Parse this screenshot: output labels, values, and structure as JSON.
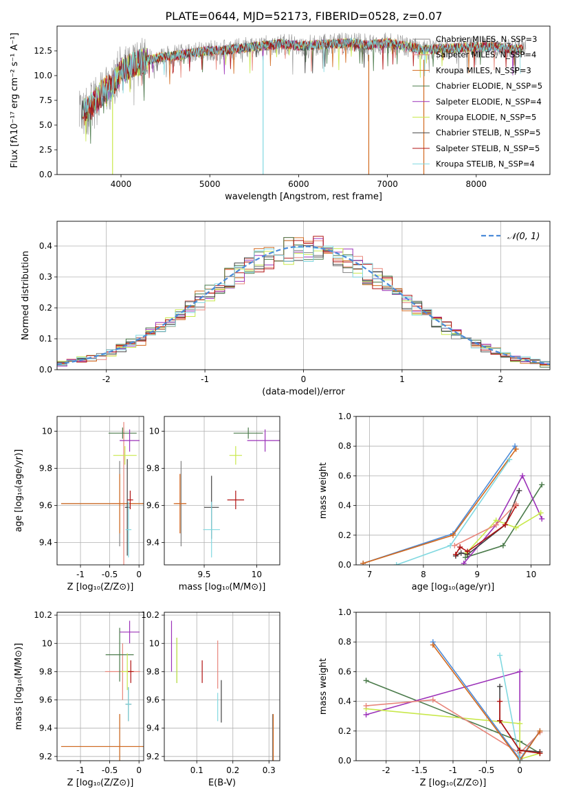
{
  "figure_title": "PLATE=0644, MJD=52173, FIBERID=0528, z=0.07",
  "colors": {
    "chabrier_miles": "#808080",
    "salpeter_miles": "#e8857a",
    "kroupa_miles": "#d2691e",
    "chabrier_elodie": "#4a7a4a",
    "salpeter_elodie": "#9b30b8",
    "kroupa_elodie": "#c8e84a",
    "chabrier_stelib": "#404040",
    "salpeter_stelib": "#b01010",
    "kroupa_stelib": "#80d8e0",
    "gauss": "#4a8ad8"
  },
  "chart_data": [
    {
      "id": "spectrum",
      "type": "line",
      "xlabel": "wavelength [Angstrom, rest frame]",
      "ylabel": "Flux [fλ10⁻¹⁷ erg cm⁻² s⁻¹ A⁻¹]",
      "xlim": [
        3280,
        8830
      ],
      "ylim": [
        0,
        15.0
      ],
      "xticks": [
        4000,
        5000,
        6000,
        7000,
        8000
      ],
      "yticks": [
        0.0,
        2.5,
        5.0,
        7.5,
        10.0,
        12.5
      ],
      "ytick_labels": [
        "0.0",
        "2.5",
        "5.0",
        "7.5",
        "10.0",
        "12.5"
      ],
      "legend_position": "right",
      "continuum": {
        "x": [
          3550,
          3700,
          3800,
          3900,
          4000,
          4100,
          4200,
          4400,
          4600,
          4800,
          5000,
          5200,
          5400,
          5600,
          5800,
          6000,
          6200,
          6400,
          6600,
          6800,
          7000,
          7200,
          7400,
          7600,
          7800,
          8000,
          8200,
          8400,
          8550
        ],
        "y": [
          6.0,
          7.2,
          8.4,
          9.0,
          10.5,
          11.0,
          11.3,
          11.8,
          12.0,
          12.3,
          12.5,
          12.6,
          12.8,
          13.0,
          13.2,
          13.0,
          13.1,
          13.2,
          13.3,
          13.1,
          13.3,
          13.0,
          12.6,
          12.7,
          12.8,
          12.9,
          12.9,
          12.7,
          12.6
        ]
      },
      "series": [
        {
          "name": "Chabrier MILES, N_SSP=3",
          "color_key": "chabrier_miles"
        },
        {
          "name": "Salpeter MILES, N_SSP=4",
          "color_key": "salpeter_miles"
        },
        {
          "name": "Kroupa MILES, N_SSP=3",
          "color_key": "kroupa_miles"
        },
        {
          "name": "Chabrier ELODIE, N_SSP=5",
          "color_key": "chabrier_elodie"
        },
        {
          "name": "Salpeter ELODIE, N_SSP=4",
          "color_key": "salpeter_elodie"
        },
        {
          "name": "Kroupa ELODIE, N_SSP=5",
          "color_key": "kroupa_elodie"
        },
        {
          "name": "Chabrier STELIB, N_SSP=5",
          "color_key": "chabrier_stelib"
        },
        {
          "name": "Salpeter STELIB, N_SSP=5",
          "color_key": "salpeter_stelib"
        },
        {
          "name": "Kroupa STELIB, N_SSP=4",
          "color_key": "kroupa_stelib"
        }
      ]
    },
    {
      "id": "residuals",
      "type": "line",
      "xlabel": "(data-model)/error",
      "ylabel": "Normed distribution",
      "xlim": [
        -2.5,
        2.5
      ],
      "ylim": [
        0,
        0.48
      ],
      "xticks": [
        -2,
        -1,
        0,
        1,
        2
      ],
      "yticks": [
        0.0,
        0.1,
        0.2,
        0.3,
        0.4
      ],
      "ytick_labels": [
        "0.0",
        "0.1",
        "0.2",
        "0.3",
        "0.4"
      ],
      "grid": true,
      "legend_position": "top-right",
      "legend": "𝒩(0, 1)",
      "bin_width": 0.1,
      "gaussian": {
        "mean": 0,
        "sigma": 1
      }
    },
    {
      "id": "age_vs_Z",
      "type": "scatter",
      "xlabel": "Z [log₁₀(Z/Z⊙)]",
      "ylabel": "age  [log₁₀(age/yr)]",
      "xlim": [
        -1.4,
        0.08
      ],
      "ylim": [
        9.28,
        10.08
      ],
      "xticks": [
        -1.0,
        -0.5,
        0.0
      ],
      "yticks": [
        9.4,
        9.6,
        9.8,
        10.0
      ],
      "grid": true,
      "points": [
        {
          "color_key": "chabrier_miles",
          "x": -0.33,
          "y": 9.61,
          "xerr": 1.0,
          "yerr": 0.23
        },
        {
          "color_key": "salpeter_miles",
          "x": -0.26,
          "y": 9.61,
          "xerr": 0.2,
          "yerr": 0.44
        },
        {
          "color_key": "kroupa_miles",
          "x": -0.33,
          "y": 9.61,
          "xerr": 1.0,
          "yerr": 0.16
        },
        {
          "color_key": "chabrier_elodie",
          "x": -0.28,
          "y": 9.99,
          "xerr": 0.24,
          "yerr": 0.03
        },
        {
          "color_key": "salpeter_elodie",
          "x": -0.16,
          "y": 9.95,
          "xerr": 0.17,
          "yerr": 0.06
        },
        {
          "color_key": "kroupa_elodie",
          "x": -0.24,
          "y": 9.87,
          "xerr": 0.2,
          "yerr": 0.05
        },
        {
          "color_key": "chabrier_stelib",
          "x": -0.2,
          "y": 9.59,
          "xerr": 0.04,
          "yerr": 0.26
        },
        {
          "color_key": "salpeter_stelib",
          "x": -0.15,
          "y": 9.63,
          "xerr": 0.05,
          "yerr": 0.05
        },
        {
          "color_key": "kroupa_stelib",
          "x": -0.18,
          "y": 9.47,
          "xerr": 0.05,
          "yerr": 0.15
        }
      ]
    },
    {
      "id": "age_vs_mass",
      "type": "scatter",
      "xlabel": "mass [log₁₀(M/M⊙)]",
      "ylabel": "",
      "xlim": [
        9.12,
        10.22
      ],
      "ylim": [
        9.28,
        10.08
      ],
      "xticks": [
        9.5,
        10.0
      ],
      "yticks": [
        9.4,
        9.6,
        9.8,
        10.0
      ],
      "grid": true,
      "points": [
        {
          "color_key": "chabrier_miles",
          "x": 9.28,
          "y": 9.61,
          "xerr": 0.05,
          "yerr": 0.23
        },
        {
          "color_key": "salpeter_miles",
          "x": 9.27,
          "y": 9.61,
          "xerr": 0.05,
          "yerr": 0.16
        },
        {
          "color_key": "kroupa_miles",
          "x": 9.27,
          "y": 9.61,
          "xerr": 0.06,
          "yerr": 0.16
        },
        {
          "color_key": "chabrier_elodie",
          "x": 9.92,
          "y": 9.99,
          "xerr": 0.14,
          "yerr": 0.03
        },
        {
          "color_key": "salpeter_elodie",
          "x": 10.08,
          "y": 9.95,
          "xerr": 0.17,
          "yerr": 0.06
        },
        {
          "color_key": "kroupa_elodie",
          "x": 9.8,
          "y": 9.87,
          "xerr": 0.06,
          "yerr": 0.05
        },
        {
          "color_key": "chabrier_stelib",
          "x": 9.57,
          "y": 9.59,
          "xerr": 0.07,
          "yerr": 0.17
        },
        {
          "color_key": "salpeter_stelib",
          "x": 9.8,
          "y": 9.63,
          "xerr": 0.08,
          "yerr": 0.05
        },
        {
          "color_key": "kroupa_stelib",
          "x": 9.57,
          "y": 9.47,
          "xerr": 0.08,
          "yerr": 0.15
        }
      ]
    },
    {
      "id": "weight_vs_age",
      "type": "line",
      "xlabel": "age  [log₁₀(age/yr)]",
      "ylabel": "mass weight",
      "xlim": [
        6.75,
        10.35
      ],
      "ylim": [
        0,
        1.0
      ],
      "xticks": [
        7,
        8,
        9,
        10
      ],
      "yticks": [
        0.0,
        0.2,
        0.4,
        0.6,
        0.8,
        1.0
      ],
      "ytick_labels": [
        "0.0",
        "0.2",
        "0.4",
        "0.6",
        "0.8",
        "1.0"
      ],
      "grid": true,
      "series": [
        {
          "color_key": "gauss",
          "x": [
            6.88,
            8.55,
            9.7
          ],
          "y": [
            0.01,
            0.21,
            0.8
          ]
        },
        {
          "color_key": "kroupa_miles",
          "x": [
            6.88,
            8.55,
            9.72
          ],
          "y": [
            0.01,
            0.2,
            0.78
          ]
        },
        {
          "color_key": "chabrier_elodie",
          "x": [
            8.78,
            9.48,
            10.2
          ],
          "y": [
            0.05,
            0.13,
            0.54
          ]
        },
        {
          "color_key": "salpeter_elodie",
          "x": [
            8.75,
            9.35,
            9.84,
            10.2
          ],
          "y": [
            0.01,
            0.27,
            0.6,
            0.31
          ]
        },
        {
          "color_key": "kroupa_elodie",
          "x": [
            8.8,
            9.35,
            9.72,
            10.18
          ],
          "y": [
            0.08,
            0.3,
            0.25,
            0.35
          ]
        },
        {
          "color_key": "chabrier_stelib",
          "x": [
            8.6,
            8.7,
            8.82,
            9.52,
            9.78
          ],
          "y": [
            0.06,
            0.08,
            0.07,
            0.27,
            0.5
          ]
        },
        {
          "color_key": "salpeter_stelib",
          "x": [
            8.6,
            8.68,
            8.82,
            9.52,
            9.72
          ],
          "y": [
            0.07,
            0.12,
            0.09,
            0.27,
            0.4
          ]
        },
        {
          "color_key": "kroupa_stelib",
          "x": [
            7.5,
            8.5,
            9.6
          ],
          "y": [
            0.0,
            0.13,
            0.71
          ]
        },
        {
          "color_key": "salpeter_miles",
          "x": [
            8.58,
            9.35,
            9.72
          ],
          "y": [
            0.13,
            0.27,
            0.41
          ]
        }
      ]
    },
    {
      "id": "mass_vs_Z",
      "type": "scatter",
      "xlabel": "Z [log₁₀(Z/Z⊙)]",
      "ylabel": "mass [log₁₀(M/M⊙)]",
      "xlim": [
        -1.4,
        0.08
      ],
      "ylim": [
        9.17,
        10.22
      ],
      "xticks": [
        -1.0,
        -0.5,
        0.0
      ],
      "yticks": [
        9.2,
        9.4,
        9.6,
        9.8,
        10.0,
        10.2
      ],
      "grid": true,
      "points": [
        {
          "color_key": "chabrier_miles",
          "x": -0.33,
          "y": 9.27,
          "xerr": 1.0,
          "yerr": 0.23
        },
        {
          "color_key": "salpeter_miles",
          "x": -0.28,
          "y": 9.8,
          "xerr": 0.3,
          "yerr": 0.2
        },
        {
          "color_key": "kroupa_miles",
          "x": -0.33,
          "y": 9.27,
          "xerr": 1.0,
          "yerr": 0.23
        },
        {
          "color_key": "chabrier_elodie",
          "x": -0.33,
          "y": 9.92,
          "xerr": 0.24,
          "yerr": 0.19
        },
        {
          "color_key": "salpeter_elodie",
          "x": -0.16,
          "y": 10.08,
          "xerr": 0.17,
          "yerr": 0.08
        },
        {
          "color_key": "kroupa_elodie",
          "x": -0.2,
          "y": 9.8,
          "xerr": 0.1,
          "yerr": 0.13
        },
        {
          "color_key": "chabrier_stelib",
          "x": -0.18,
          "y": 9.57,
          "xerr": 0.05,
          "yerr": 0.12
        },
        {
          "color_key": "salpeter_stelib",
          "x": -0.14,
          "y": 9.8,
          "xerr": 0.05,
          "yerr": 0.08
        },
        {
          "color_key": "kroupa_stelib",
          "x": -0.18,
          "y": 9.57,
          "xerr": 0.05,
          "yerr": 0.12
        }
      ]
    },
    {
      "id": "mass_vs_ebv",
      "type": "scatter",
      "xlabel": "E(B-V)",
      "ylabel": "",
      "xlim": [
        0.01,
        0.33
      ],
      "ylim": [
        9.17,
        10.22
      ],
      "xticks": [
        0.1,
        0.2,
        0.3
      ],
      "yticks": [
        9.2,
        9.4,
        9.6,
        9.8,
        10.0,
        10.2
      ],
      "grid": true,
      "points": [
        {
          "color_key": "chabrier_miles",
          "x": 0.31,
          "y": 9.27,
          "xerr": 0.0,
          "yerr": 0.23
        },
        {
          "color_key": "kroupa_miles",
          "x": 0.312,
          "y": 9.27,
          "xerr": 0.0,
          "yerr": 0.23
        },
        {
          "color_key": "salpeter_miles",
          "x": 0.158,
          "y": 9.85,
          "xerr": 0.0,
          "yerr": 0.17
        },
        {
          "color_key": "chabrier_elodie",
          "x": 0.045,
          "y": 9.88,
          "xerr": 0.0,
          "yerr": 0.16
        },
        {
          "color_key": "salpeter_elodie",
          "x": 0.03,
          "y": 9.98,
          "xerr": 0.0,
          "yerr": 0.18
        },
        {
          "color_key": "kroupa_elodie",
          "x": 0.045,
          "y": 9.88,
          "xerr": 0.0,
          "yerr": 0.16
        },
        {
          "color_key": "chabrier_stelib",
          "x": 0.168,
          "y": 9.59,
          "xerr": 0.0,
          "yerr": 0.15
        },
        {
          "color_key": "salpeter_stelib",
          "x": 0.115,
          "y": 9.8,
          "xerr": 0.0,
          "yerr": 0.08
        },
        {
          "color_key": "kroupa_stelib",
          "x": 0.158,
          "y": 9.55,
          "xerr": 0.0,
          "yerr": 0.1
        }
      ]
    },
    {
      "id": "weight_vs_Z",
      "type": "line",
      "xlabel": "Z [log₁₀(Z/Z⊙)]",
      "ylabel": "mass weight",
      "xlim": [
        -2.45,
        0.45
      ],
      "ylim": [
        0,
        1.0
      ],
      "xticks": [
        -2.0,
        -1.5,
        -1.0,
        -0.5,
        0.0
      ],
      "yticks": [
        0.0,
        0.2,
        0.4,
        0.6,
        0.8,
        1.0
      ],
      "ytick_labels": [
        "0.0",
        "0.2",
        "0.4",
        "0.6",
        "0.8",
        "1.0"
      ],
      "grid": true,
      "series": [
        {
          "color_key": "chabrier_elodie",
          "x": [
            -2.3,
            0.0,
            0.3
          ],
          "y": [
            0.54,
            0.13,
            0.05
          ]
        },
        {
          "color_key": "salpeter_elodie",
          "x": [
            -2.3,
            0.0,
            0.0
          ],
          "y": [
            0.31,
            0.6,
            0.01
          ]
        },
        {
          "color_key": "kroupa_elodie",
          "x": [
            -2.3,
            0.0,
            0.0,
            0.3
          ],
          "y": [
            0.35,
            0.25,
            0.01,
            0.05
          ]
        },
        {
          "color_key": "salpeter_miles",
          "x": [
            -2.3,
            -1.3,
            0.0,
            0.3
          ],
          "y": [
            0.37,
            0.41,
            0.05,
            0.19
          ]
        },
        {
          "color_key": "gauss",
          "x": [
            -1.3,
            0.0,
            0.3
          ],
          "y": [
            0.8,
            0.01,
            0.2
          ]
        },
        {
          "color_key": "kroupa_miles",
          "x": [
            -1.3,
            0.0,
            0.3
          ],
          "y": [
            0.78,
            0.0,
            0.2
          ]
        },
        {
          "color_key": "kroupa_stelib",
          "x": [
            -0.3,
            0.0
          ],
          "y": [
            0.71,
            0.0
          ]
        },
        {
          "color_key": "chabrier_stelib",
          "x": [
            -0.3,
            -0.3,
            0.0,
            0.3
          ],
          "y": [
            0.5,
            0.27,
            0.07,
            0.06
          ]
        },
        {
          "color_key": "salpeter_stelib",
          "x": [
            -0.3,
            -0.3,
            0.0,
            0.3
          ],
          "y": [
            0.4,
            0.27,
            0.07,
            0.05
          ]
        }
      ]
    }
  ]
}
